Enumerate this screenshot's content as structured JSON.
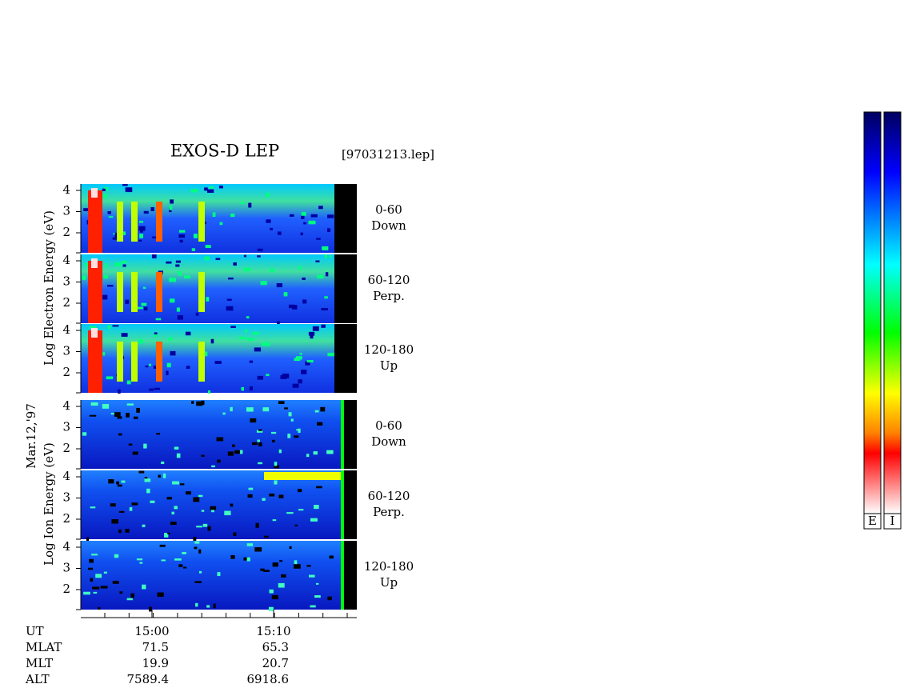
{
  "title": "EXOS-D LEP",
  "file": "[97031213.lep]",
  "date": "Mar.12,'97",
  "electron_label": "Log  Electron  Energy  (eV)",
  "ion_label": "Log    Ion   Energy  (eV)",
  "panels": [
    {
      "angle": "0-60",
      "direction": "Down"
    },
    {
      "angle": "60-120",
      "direction": "Perp."
    },
    {
      "angle": "120-180",
      "direction": "Up"
    },
    {
      "angle": "0-60",
      "direction": "Down"
    },
    {
      "angle": "60-120",
      "direction": "Perp."
    },
    {
      "angle": "120-180",
      "direction": "Up"
    }
  ],
  "yticks": [
    "2",
    "3",
    "4"
  ],
  "xticks": [
    "15:00",
    "15:10"
  ],
  "footer": {
    "labels": [
      "UT",
      "MLAT",
      "MLT",
      "ALT"
    ],
    "rows": [
      [
        "71.5",
        "65.3"
      ],
      [
        "19.9",
        "20.7"
      ],
      [
        "7589.4",
        "6918.6"
      ]
    ]
  },
  "colorbars": [
    "E",
    "I"
  ]
}
